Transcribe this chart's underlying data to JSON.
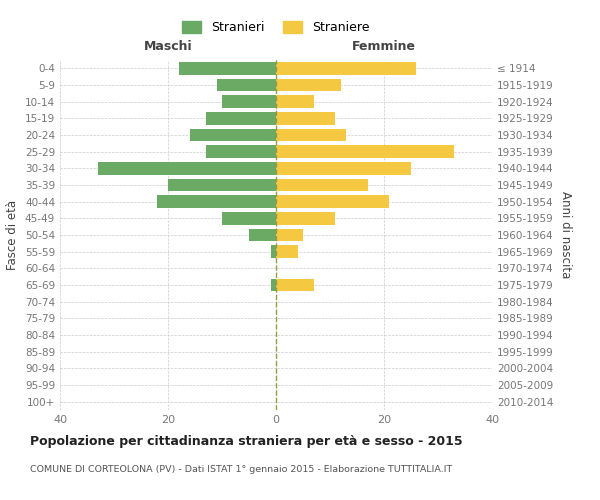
{
  "age_groups": [
    "0-4",
    "5-9",
    "10-14",
    "15-19",
    "20-24",
    "25-29",
    "30-34",
    "35-39",
    "40-44",
    "45-49",
    "50-54",
    "55-59",
    "60-64",
    "65-69",
    "70-74",
    "75-79",
    "80-84",
    "85-89",
    "90-94",
    "95-99",
    "100+"
  ],
  "birth_years": [
    "2010-2014",
    "2005-2009",
    "2000-2004",
    "1995-1999",
    "1990-1994",
    "1985-1989",
    "1980-1984",
    "1975-1979",
    "1970-1974",
    "1965-1969",
    "1960-1964",
    "1955-1959",
    "1950-1954",
    "1945-1949",
    "1940-1944",
    "1935-1939",
    "1930-1934",
    "1925-1929",
    "1920-1924",
    "1915-1919",
    "≤ 1914"
  ],
  "maschi": [
    18,
    11,
    10,
    13,
    16,
    13,
    33,
    20,
    22,
    10,
    5,
    1,
    0,
    1,
    0,
    0,
    0,
    0,
    0,
    0,
    0
  ],
  "femmine": [
    26,
    12,
    7,
    11,
    13,
    33,
    25,
    17,
    21,
    11,
    5,
    4,
    0,
    7,
    0,
    0,
    0,
    0,
    0,
    0,
    0
  ],
  "color_maschi": "#6aaa64",
  "color_femmine": "#f5c842",
  "title": "Popolazione per cittadinanza straniera per età e sesso - 2015",
  "subtitle": "COMUNE DI CORTEOLONA (PV) - Dati ISTAT 1° gennaio 2015 - Elaborazione TUTTITALIA.IT",
  "ylabel_left": "Fasce di età",
  "ylabel_right": "Anni di nascita",
  "xlabel_left": "Maschi",
  "xlabel_right": "Femmine",
  "xlim": 40,
  "legend_stranieri": "Stranieri",
  "legend_straniere": "Straniere",
  "bg_color": "#ffffff",
  "grid_color": "#cccccc",
  "bar_height": 0.75
}
